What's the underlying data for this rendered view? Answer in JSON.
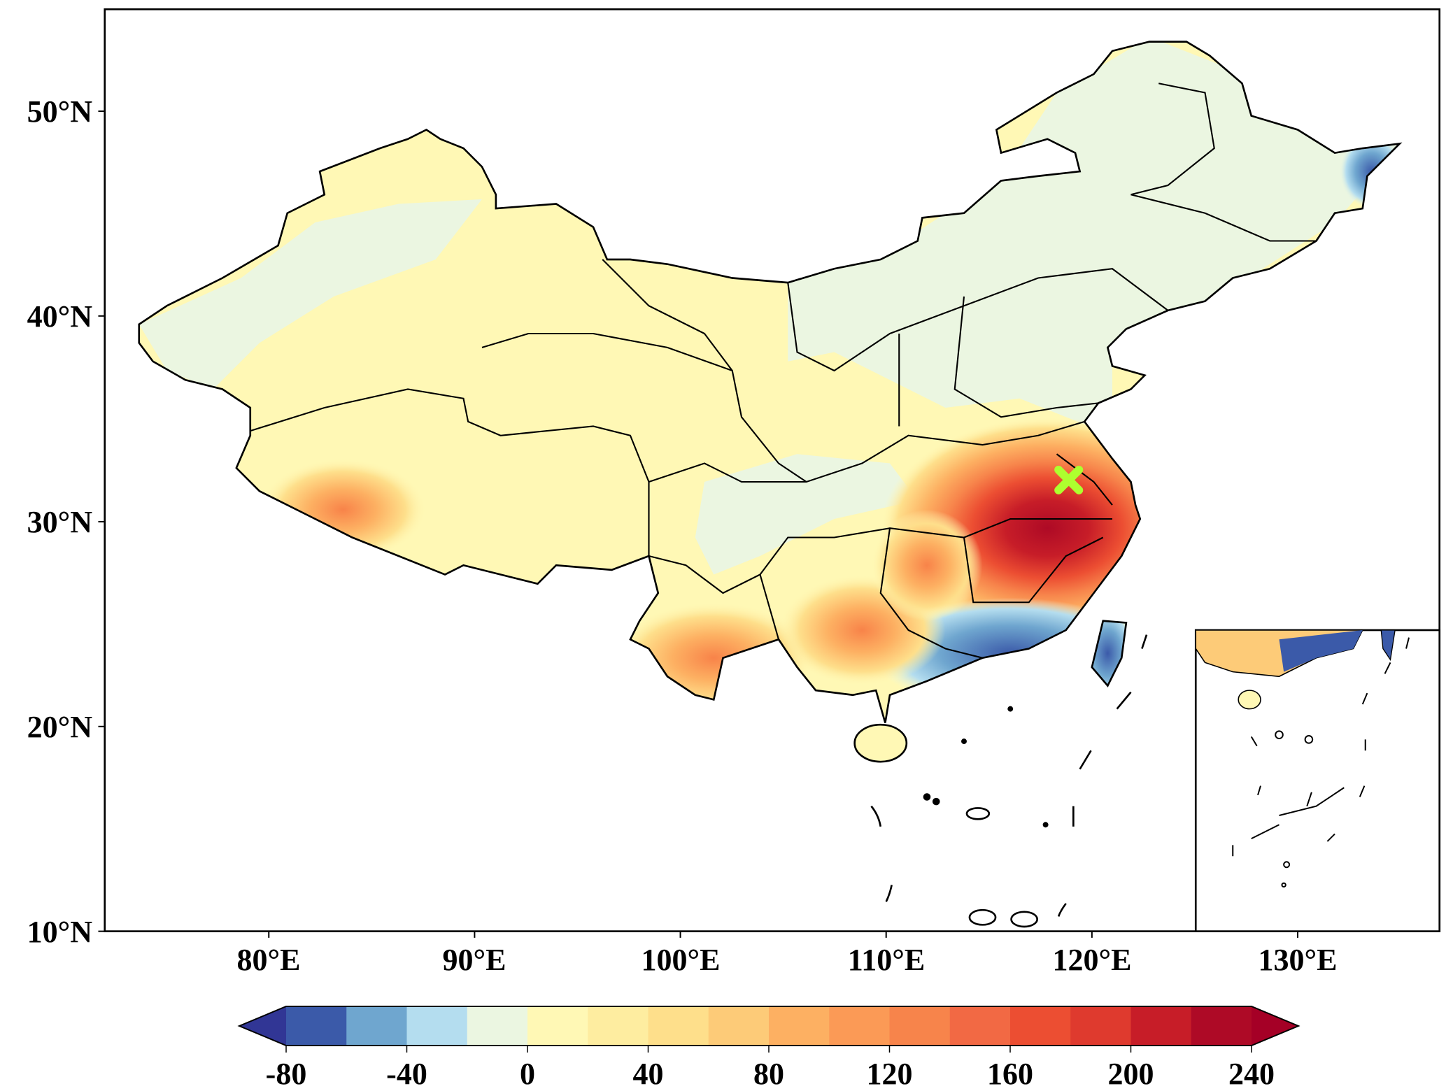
{
  "map": {
    "lat_ticks": [
      "50°N",
      "40°N",
      "30°N",
      "20°N",
      "10°N"
    ],
    "lon_ticks": [
      "80°E",
      "90°E",
      "100°E",
      "110°E",
      "120°E",
      "130°E"
    ],
    "marker_color": "#adff2f"
  },
  "colorbar": {
    "ticks": [
      "-80",
      "-40",
      "0",
      "40",
      "80",
      "120",
      "160",
      "200",
      "240"
    ],
    "levels": [
      -80,
      -60,
      -40,
      -20,
      0,
      20,
      40,
      60,
      80,
      100,
      120,
      140,
      160,
      180,
      200,
      220,
      240
    ],
    "colors": [
      "#3b5aa9",
      "#6fa6cf",
      "#b4ddef",
      "#ebf6e1",
      "#fff8b5",
      "#feeda0",
      "#fedf8b",
      "#fdcb78",
      "#fdb062",
      "#fb9a56",
      "#f7844b",
      "#f26944",
      "#ec4e32",
      "#df3a2e",
      "#c71d28",
      "#ae0a26"
    ],
    "under_color": "#313695",
    "over_color": "#a50026"
  }
}
